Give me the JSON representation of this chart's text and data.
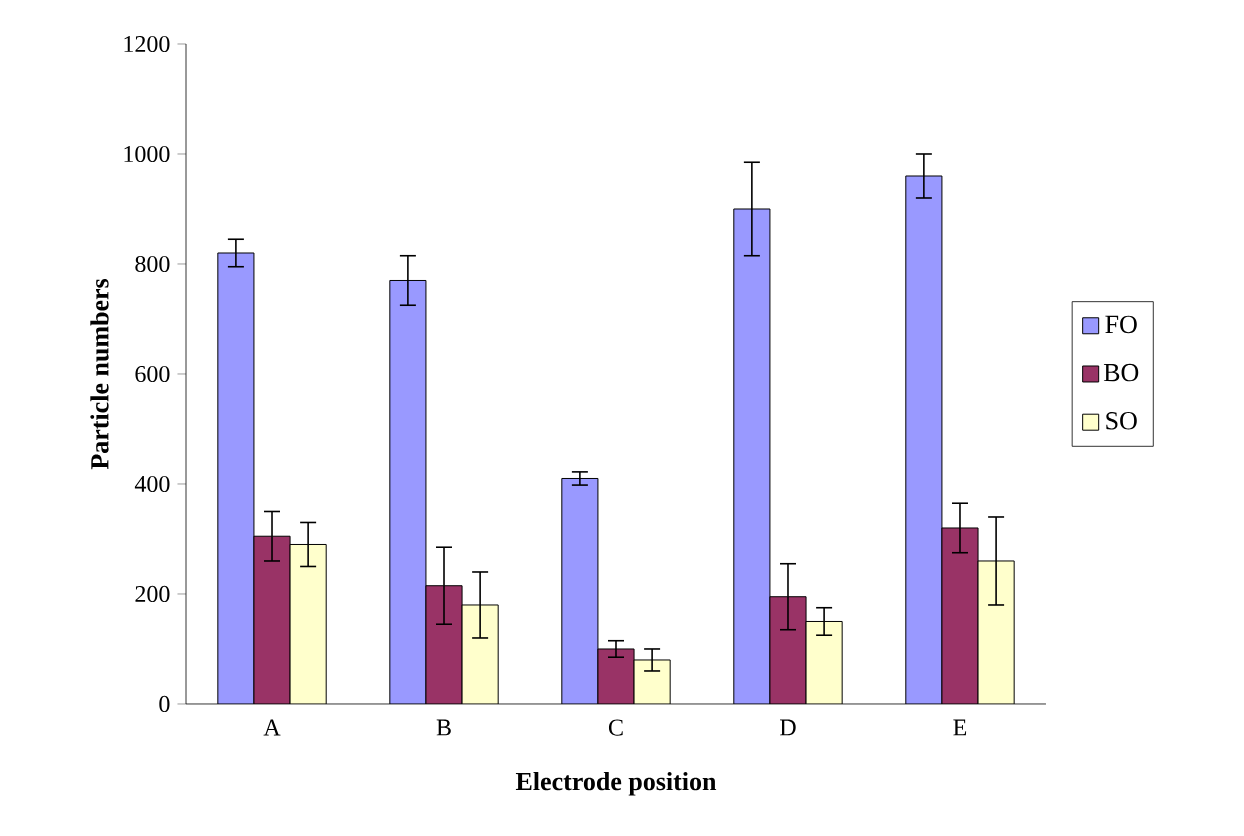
{
  "chart_data": {
    "type": "bar",
    "xlabel": "Electrode position",
    "ylabel": "Particle numbers",
    "categories": [
      "A",
      "B",
      "C",
      "D",
      "E"
    ],
    "series": [
      {
        "name": "FO",
        "color": "#9999ff",
        "values": [
          820,
          770,
          410,
          900,
          960
        ],
        "errors": [
          25,
          45,
          12,
          85,
          40
        ]
      },
      {
        "name": "BO",
        "color": "#993366",
        "values": [
          305,
          215,
          100,
          195,
          320
        ],
        "errors": [
          45,
          70,
          15,
          60,
          45
        ]
      },
      {
        "name": "SO",
        "color": "#ffffcc",
        "values": [
          290,
          180,
          80,
          150,
          260
        ],
        "errors": [
          40,
          60,
          20,
          25,
          80
        ]
      }
    ],
    "ylim": [
      0,
      1200
    ],
    "yticks": [
      0,
      200,
      400,
      600,
      800,
      1000,
      1200
    ],
    "legend": "right",
    "grid": false
  }
}
